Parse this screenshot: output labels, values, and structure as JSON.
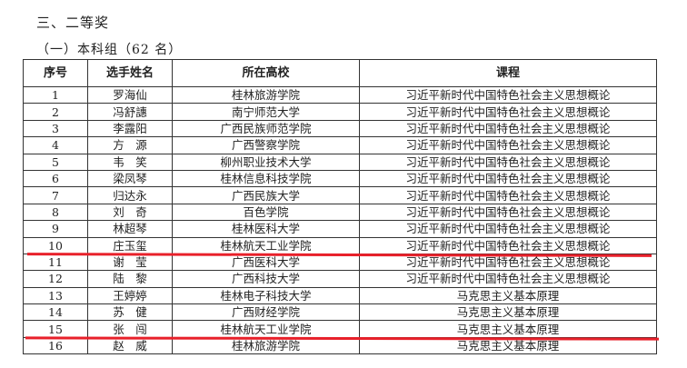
{
  "heading": "三、二等奖",
  "subheading": "（一）本科组（62 名）",
  "table": {
    "headers": [
      "序号",
      "选手姓名",
      "所在高校",
      "课程"
    ],
    "rows": [
      [
        "1",
        "罗海仙",
        "桂林旅游学院",
        "习近平新时代中国特色社会主义思想概论"
      ],
      [
        "2",
        "冯舒譓",
        "南宁师范大学",
        "习近平新时代中国特色社会主义思想概论"
      ],
      [
        "3",
        "李露阳",
        "广西民族师范学院",
        "习近平新时代中国特色社会主义思想概论"
      ],
      [
        "4",
        "方　源",
        "广西警察学院",
        "习近平新时代中国特色社会主义思想概论"
      ],
      [
        "5",
        "韦　笑",
        "柳州职业技术大学",
        "习近平新时代中国特色社会主义思想概论"
      ],
      [
        "6",
        "梁凤琴",
        "桂林信息科技学院",
        "习近平新时代中国特色社会主义思想概论"
      ],
      [
        "7",
        "归达永",
        "广西民族大学",
        "习近平新时代中国特色社会主义思想概论"
      ],
      [
        "8",
        "刘　奇",
        "百色学院",
        "习近平新时代中国特色社会主义思想概论"
      ],
      [
        "9",
        "林超琴",
        "桂林医科大学",
        "习近平新时代中国特色社会主义思想概论"
      ],
      [
        "10",
        "庄玉玺",
        "桂林航天工业学院",
        "习近平新时代中国特色社会主义思想概论"
      ],
      [
        "11",
        "谢　莹",
        "广西医科大学",
        "习近平新时代中国特色社会主义思想概论"
      ],
      [
        "12",
        "陆　黎",
        "广西科技大学",
        "习近平新时代中国特色社会主义思想概论"
      ],
      [
        "13",
        "王婷婷",
        "桂林电子科技大学",
        "马克思主义基本原理"
      ],
      [
        "14",
        "苏　健",
        "广西财经学院",
        "马克思主义基本原理"
      ],
      [
        "15",
        "张　闯",
        "桂林航天工业学院",
        "马克思主义基本原理"
      ],
      [
        "16",
        "赵　威",
        "桂林旅游学院",
        "马克思主义基本原理"
      ]
    ]
  },
  "annotation_color": "#e8202a"
}
